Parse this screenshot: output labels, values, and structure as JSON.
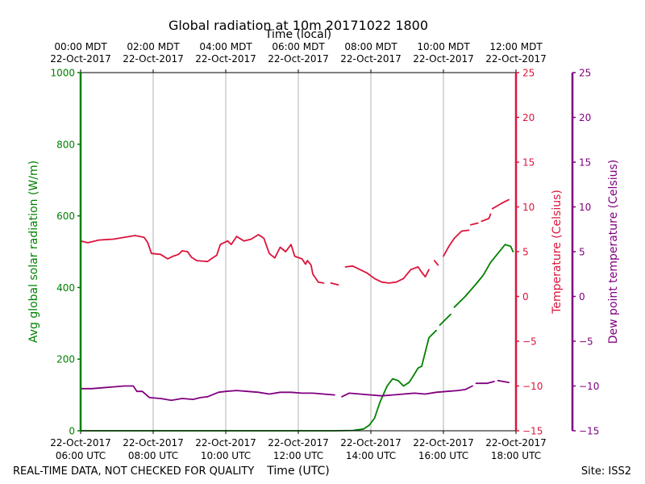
{
  "chart_data": {
    "type": "line",
    "title": "Global radiation at 10m 20171022 1800",
    "top_xlabel": "Time (local)",
    "xlabel": "Time (UTC)",
    "footer_left": "REAL-TIME DATA, NOT CHECKED FOR QUALITY",
    "footer_right": "Site: ISS2",
    "x_range_hours_utc": [
      6,
      18
    ],
    "grid": "vertical",
    "bottom_ticks": [
      {
        "h": 6,
        "line1": "22-Oct-2017",
        "line2": "06:00 UTC"
      },
      {
        "h": 8,
        "line1": "22-Oct-2017",
        "line2": "08:00 UTC"
      },
      {
        "h": 10,
        "line1": "22-Oct-2017",
        "line2": "10:00 UTC"
      },
      {
        "h": 12,
        "line1": "22-Oct-2017",
        "line2": "12:00 UTC"
      },
      {
        "h": 14,
        "line1": "22-Oct-2017",
        "line2": "14:00 UTC"
      },
      {
        "h": 16,
        "line1": "22-Oct-2017",
        "line2": "16:00 UTC"
      },
      {
        "h": 18,
        "line1": "22-Oct-2017",
        "line2": "18:00 UTC"
      }
    ],
    "top_ticks": [
      {
        "h": 6,
        "line1": "00:00 MDT",
        "line2": "22-Oct-2017"
      },
      {
        "h": 8,
        "line1": "02:00 MDT",
        "line2": "22-Oct-2017"
      },
      {
        "h": 10,
        "line1": "04:00 MDT",
        "line2": "22-Oct-2017"
      },
      {
        "h": 12,
        "line1": "06:00 MDT",
        "line2": "22-Oct-2017"
      },
      {
        "h": 14,
        "line1": "08:00 MDT",
        "line2": "22-Oct-2017"
      },
      {
        "h": 16,
        "line1": "10:00 MDT",
        "line2": "22-Oct-2017"
      },
      {
        "h": 18,
        "line1": "12:00 MDT",
        "line2": "22-Oct-2017"
      }
    ],
    "axes": [
      {
        "id": "rad",
        "label": "Avg global solar radiation (W/m)",
        "color": "#008000",
        "ylim": [
          0,
          1000
        ],
        "ticks": [
          0,
          200,
          400,
          600,
          800,
          1000
        ],
        "tick_labels": [
          "0",
          "200",
          "400",
          "600",
          "800",
          "1000"
        ]
      },
      {
        "id": "temp",
        "label": "Temperature (Celsius)",
        "color": "#dc143c",
        "ylim": [
          -15,
          25
        ],
        "ticks": [
          -15,
          -10,
          -5,
          0,
          5,
          10,
          15,
          20,
          25
        ],
        "tick_labels": [
          "−15",
          "−10",
          "−5",
          "0",
          "5",
          "10",
          "15",
          "20",
          "25"
        ]
      },
      {
        "id": "dew",
        "label": "Dew point temperature (Celsius)",
        "color": "#800080",
        "ylim": [
          -15,
          25
        ],
        "ticks": [
          -15,
          -10,
          -5,
          0,
          5,
          10,
          15,
          20,
          25
        ],
        "tick_labels": [
          "−15",
          "−10",
          "−5",
          "0",
          "5",
          "10",
          "15",
          "20",
          "25"
        ]
      }
    ],
    "series": [
      {
        "name": "Avg global solar radiation",
        "axis": "rad",
        "color": "#008000",
        "segments": [
          [
            [
              6.0,
              0
            ],
            [
              8.0,
              0
            ],
            [
              10.0,
              0
            ],
            [
              12.0,
              0
            ],
            [
              13.0,
              0
            ],
            [
              13.5,
              1
            ],
            [
              13.8,
              5
            ],
            [
              13.95,
              15
            ],
            [
              14.1,
              35
            ],
            [
              14.25,
              80
            ],
            [
              14.45,
              125
            ],
            [
              14.6,
              145
            ],
            [
              14.75,
              140
            ],
            [
              14.9,
              125
            ],
            [
              15.05,
              135
            ],
            [
              15.15,
              150
            ],
            [
              15.3,
              175
            ],
            [
              15.4,
              180
            ],
            [
              15.5,
              220
            ],
            [
              15.6,
              260
            ],
            [
              15.8,
              280
            ]
          ],
          [
            [
              15.9,
              295
            ],
            [
              16.2,
              325
            ]
          ],
          [
            [
              16.3,
              345
            ],
            [
              16.6,
              375
            ],
            [
              16.9,
              410
            ],
            [
              17.1,
              435
            ],
            [
              17.3,
              470
            ],
            [
              17.5,
              495
            ],
            [
              17.7,
              520
            ],
            [
              17.85,
              515
            ],
            [
              17.92,
              500
            ]
          ],
          [
            [
              17.98,
              495
            ],
            [
              18.1,
              505
            ],
            [
              18.15,
              490
            ]
          ],
          [
            [
              18.35,
              455
            ],
            [
              18.45,
              460
            ]
          ],
          [
            [
              18.5,
              520
            ],
            [
              18.6,
              580
            ],
            [
              18.75,
              590
            ],
            [
              18.85,
              575
            ],
            [
              19.0,
              598
            ]
          ]
        ]
      },
      {
        "name": "Temperature",
        "axis": "temp",
        "color": "#dc143c",
        "segments": [
          [
            [
              6.0,
              6.2
            ],
            [
              6.2,
              6.0
            ],
            [
              6.5,
              6.3
            ],
            [
              6.9,
              6.4
            ],
            [
              7.2,
              6.6
            ],
            [
              7.5,
              6.8
            ],
            [
              7.75,
              6.6
            ],
            [
              7.85,
              6.0
            ],
            [
              7.95,
              4.8
            ],
            [
              8.2,
              4.7
            ],
            [
              8.4,
              4.2
            ],
            [
              8.55,
              4.5
            ],
            [
              8.7,
              4.7
            ],
            [
              8.8,
              5.1
            ],
            [
              8.95,
              5.0
            ],
            [
              9.05,
              4.4
            ],
            [
              9.2,
              4.0
            ],
            [
              9.5,
              3.9
            ],
            [
              9.6,
              4.2
            ],
            [
              9.75,
              4.6
            ],
            [
              9.85,
              5.8
            ],
            [
              10.05,
              6.2
            ],
            [
              10.15,
              5.8
            ],
            [
              10.3,
              6.7
            ],
            [
              10.5,
              6.2
            ],
            [
              10.7,
              6.4
            ],
            [
              10.9,
              6.9
            ],
            [
              11.05,
              6.5
            ],
            [
              11.2,
              4.8
            ],
            [
              11.35,
              4.3
            ],
            [
              11.5,
              5.5
            ],
            [
              11.65,
              5.0
            ],
            [
              11.8,
              5.8
            ],
            [
              11.9,
              4.5
            ],
            [
              12.1,
              4.2
            ],
            [
              12.2,
              3.6
            ],
            [
              12.25,
              4.0
            ],
            [
              12.35,
              3.5
            ],
            [
              12.4,
              2.5
            ],
            [
              12.55,
              1.6
            ],
            [
              12.7,
              1.5
            ]
          ],
          [
            [
              12.9,
              1.5
            ],
            [
              13.1,
              1.3
            ]
          ],
          [
            [
              13.3,
              3.3
            ],
            [
              13.5,
              3.4
            ],
            [
              13.7,
              3.0
            ],
            [
              13.9,
              2.6
            ],
            [
              14.1,
              2.0
            ],
            [
              14.3,
              1.6
            ],
            [
              14.5,
              1.5
            ],
            [
              14.7,
              1.6
            ],
            [
              14.9,
              2.0
            ],
            [
              15.1,
              3.0
            ],
            [
              15.3,
              3.3
            ],
            [
              15.4,
              2.7
            ],
            [
              15.5,
              2.2
            ],
            [
              15.6,
              3.0
            ]
          ],
          [
            [
              15.75,
              4.0
            ],
            [
              15.85,
              3.5
            ]
          ],
          [
            [
              16.0,
              4.5
            ],
            [
              16.15,
              5.6
            ],
            [
              16.3,
              6.5
            ],
            [
              16.5,
              7.3
            ],
            [
              16.7,
              7.4
            ]
          ],
          [
            [
              16.75,
              8.0
            ],
            [
              16.95,
              8.2
            ]
          ],
          [
            [
              17.05,
              8.4
            ],
            [
              17.25,
              8.7
            ],
            [
              17.3,
              9.2
            ]
          ],
          [
            [
              17.35,
              9.8
            ],
            [
              17.6,
              10.4
            ],
            [
              17.8,
              10.8
            ]
          ],
          [
            [
              17.9,
              11.4
            ],
            [
              18.1,
              11.9
            ],
            [
              18.4,
              12.4
            ],
            [
              18.7,
              12.9
            ],
            [
              19.0,
              13.3
            ],
            [
              19.2,
              13.7
            ]
          ],
          [
            [
              19.3,
              14.1
            ],
            [
              19.6,
              14.4
            ]
          ],
          [
            [
              19.7,
              14.6
            ],
            [
              19.95,
              14.7
            ]
          ],
          [
            [
              20.0,
              14.4
            ],
            [
              20.2,
              14.6
            ],
            [
              20.5,
              14.8
            ],
            [
              20.75,
              15.0
            ],
            [
              20.95,
              15.2
            ]
          ]
        ]
      },
      {
        "name": "Dew point temperature",
        "axis": "dew",
        "color": "#800080",
        "segments": [
          [
            [
              6.0,
              -10.3
            ],
            [
              6.3,
              -10.3
            ],
            [
              6.6,
              -10.2
            ],
            [
              6.9,
              -10.1
            ],
            [
              7.2,
              -10.0
            ],
            [
              7.45,
              -10.0
            ],
            [
              7.55,
              -10.6
            ],
            [
              7.7,
              -10.6
            ],
            [
              7.9,
              -11.3
            ],
            [
              8.2,
              -11.4
            ],
            [
              8.5,
              -11.6
            ],
            [
              8.8,
              -11.4
            ],
            [
              9.1,
              -11.5
            ],
            [
              9.3,
              -11.3
            ],
            [
              9.5,
              -11.2
            ],
            [
              9.8,
              -10.7
            ],
            [
              10.0,
              -10.6
            ],
            [
              10.3,
              -10.5
            ],
            [
              10.6,
              -10.6
            ],
            [
              10.9,
              -10.7
            ],
            [
              11.2,
              -10.9
            ],
            [
              11.5,
              -10.7
            ],
            [
              11.8,
              -10.7
            ],
            [
              12.1,
              -10.8
            ],
            [
              12.4,
              -10.8
            ],
            [
              12.7,
              -10.9
            ],
            [
              13.0,
              -11.0
            ]
          ],
          [
            [
              13.2,
              -11.2
            ],
            [
              13.4,
              -10.8
            ],
            [
              13.7,
              -10.9
            ],
            [
              14.0,
              -11.0
            ],
            [
              14.3,
              -11.1
            ],
            [
              14.6,
              -11.0
            ],
            [
              14.9,
              -10.9
            ],
            [
              15.2,
              -10.8
            ],
            [
              15.5,
              -10.9
            ],
            [
              15.8,
              -10.7
            ],
            [
              16.1,
              -10.6
            ],
            [
              16.4,
              -10.5
            ],
            [
              16.6,
              -10.4
            ],
            [
              16.8,
              -10.0
            ]
          ],
          [
            [
              16.9,
              -9.7
            ],
            [
              17.2,
              -9.7
            ],
            [
              17.4,
              -9.5
            ]
          ],
          [
            [
              17.5,
              -9.4
            ],
            [
              17.8,
              -9.6
            ],
            [
              18.1,
              -9.8
            ],
            [
              18.4,
              -9.7
            ],
            [
              18.7,
              -9.9
            ],
            [
              18.9,
              -9.9
            ]
          ],
          [
            [
              19.0,
              -9.5
            ],
            [
              19.3,
              -9.3
            ],
            [
              19.5,
              -9.2
            ],
            [
              19.7,
              -9.0
            ],
            [
              19.9,
              -8.7
            ]
          ],
          [
            [
              20.1,
              -9.5
            ],
            [
              20.2,
              -8.6
            ],
            [
              20.4,
              -8.3
            ],
            [
              20.6,
              -8.1
            ],
            [
              20.8,
              -8.0
            ],
            [
              21.0,
              -7.8
            ]
          ]
        ]
      }
    ]
  }
}
